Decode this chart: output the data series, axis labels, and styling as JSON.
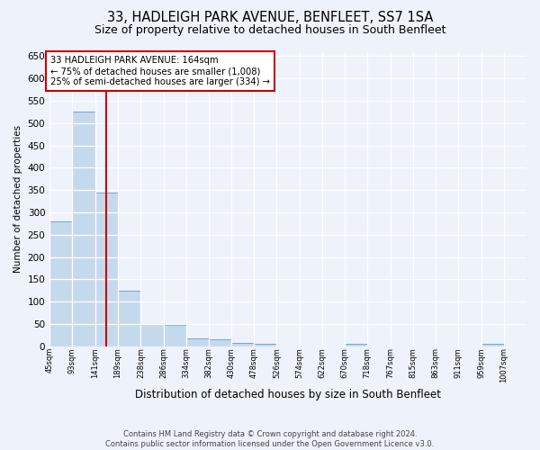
{
  "title": "33, HADLEIGH PARK AVENUE, BENFLEET, SS7 1SA",
  "subtitle": "Size of property relative to detached houses in South Benfleet",
  "xlabel": "Distribution of detached houses by size in South Benfleet",
  "ylabel": "Number of detached properties",
  "bin_labels": [
    "45sqm",
    "93sqm",
    "141sqm",
    "189sqm",
    "238sqm",
    "286sqm",
    "334sqm",
    "382sqm",
    "430sqm",
    "478sqm",
    "526sqm",
    "574sqm",
    "622sqm",
    "670sqm",
    "718sqm",
    "767sqm",
    "815sqm",
    "863sqm",
    "911sqm",
    "959sqm",
    "1007sqm"
  ],
  "bin_left_edges": [
    45,
    93,
    141,
    189,
    238,
    286,
    334,
    382,
    430,
    478,
    526,
    574,
    622,
    670,
    718,
    767,
    815,
    863,
    911,
    959,
    1007
  ],
  "bin_width": 48,
  "bar_heights": [
    280,
    525,
    345,
    125,
    50,
    48,
    17,
    16,
    8,
    5,
    0,
    0,
    0,
    5,
    0,
    0,
    0,
    0,
    0,
    5,
    0
  ],
  "bar_color": "#c5d9ed",
  "bar_edge_color": "#6699cc",
  "property_size": 164,
  "red_line_color": "#cc0000",
  "ylim": [
    0,
    660
  ],
  "yticks": [
    0,
    50,
    100,
    150,
    200,
    250,
    300,
    350,
    400,
    450,
    500,
    550,
    600,
    650
  ],
  "annotation_line1": "33 HADLEIGH PARK AVENUE: 164sqm",
  "annotation_line2": "← 75% of detached houses are smaller (1,008)",
  "annotation_line3": "25% of semi-detached houses are larger (334) →",
  "annotation_box_color": "#cc0000",
  "footer_line1": "Contains HM Land Registry data © Crown copyright and database right 2024.",
  "footer_line2": "Contains public sector information licensed under the Open Government Licence v3.0.",
  "bg_color": "#eef2fa",
  "grid_color": "#ffffff",
  "title_fontsize": 10.5,
  "subtitle_fontsize": 9
}
